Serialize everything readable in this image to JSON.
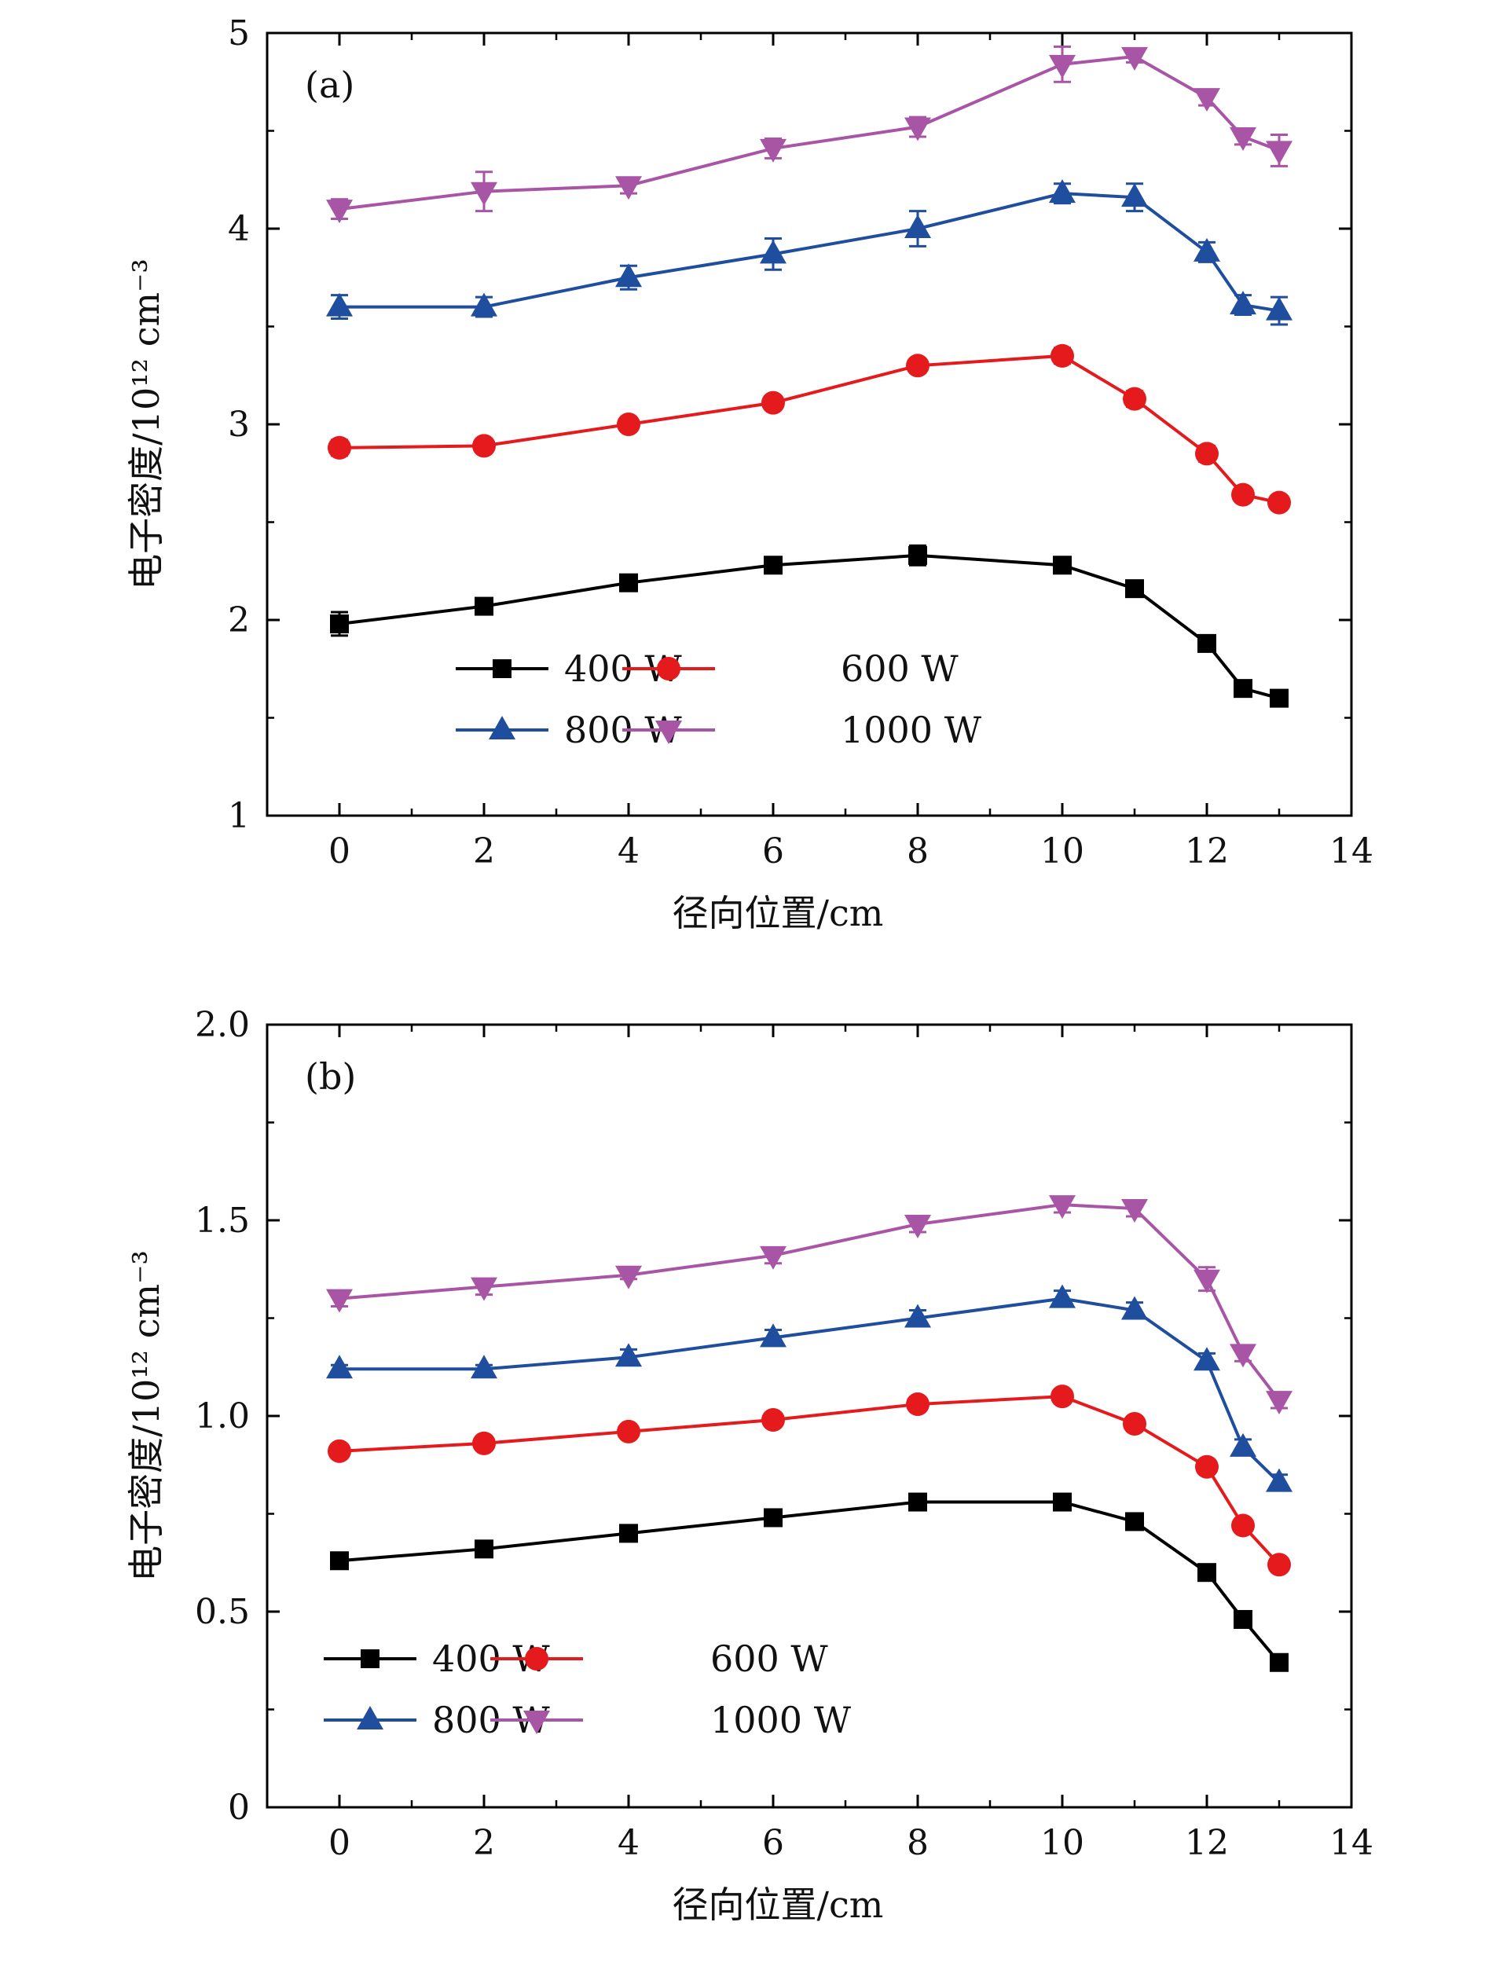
{
  "chart_data": [
    {
      "type": "line",
      "panel_label": "(a)",
      "xlabel": "径向位置/cm",
      "ylabel": "电子密度/10¹² cm⁻³",
      "xlim": [
        -1,
        14
      ],
      "ylim": [
        1,
        5
      ],
      "xticks": [
        0,
        2,
        4,
        6,
        8,
        10,
        12,
        14
      ],
      "yticks": [
        1,
        2,
        3,
        4,
        5
      ],
      "x": [
        0,
        2,
        4,
        6,
        8,
        10,
        11,
        12,
        12.5,
        13
      ],
      "legend_position": "lower-left",
      "series": [
        {
          "name": "400 W",
          "color": "#000000",
          "marker": "square",
          "values": [
            1.98,
            2.07,
            2.19,
            2.28,
            2.33,
            2.28,
            2.16,
            1.88,
            1.65,
            1.6
          ],
          "errors": [
            0.06,
            0.03,
            0.03,
            0.03,
            0.05,
            0.03,
            0.03,
            0.03,
            0.03,
            0.04
          ]
        },
        {
          "name": "600 W",
          "color": "#e41a1c",
          "marker": "circle",
          "values": [
            2.88,
            2.89,
            3.0,
            3.11,
            3.3,
            3.35,
            3.13,
            2.85,
            2.64,
            2.6
          ],
          "errors": [
            0.04,
            0.03,
            0.03,
            0.03,
            0.03,
            0.04,
            0.04,
            0.04,
            0.03,
            0.03
          ]
        },
        {
          "name": "800 W",
          "color": "#1f4e9e",
          "marker": "triangle-up",
          "values": [
            3.6,
            3.6,
            3.75,
            3.87,
            4.0,
            4.18,
            4.16,
            3.88,
            3.61,
            3.58
          ],
          "errors": [
            0.06,
            0.05,
            0.06,
            0.08,
            0.09,
            0.05,
            0.07,
            0.05,
            0.05,
            0.07
          ]
        },
        {
          "name": "1000 W",
          "color": "#a955a6",
          "marker": "triangle-down",
          "values": [
            4.1,
            4.19,
            4.22,
            4.41,
            4.52,
            4.84,
            4.88,
            4.67,
            4.47,
            4.4
          ],
          "errors": [
            0.05,
            0.1,
            0.04,
            0.05,
            0.05,
            0.09,
            0.03,
            0.04,
            0.04,
            0.08
          ]
        }
      ]
    },
    {
      "type": "line",
      "panel_label": "(b)",
      "xlabel": "径向位置/cm",
      "ylabel": "电子密度/10¹² cm⁻³",
      "xlim": [
        -1,
        14
      ],
      "ylim": [
        0,
        2.0
      ],
      "xticks": [
        0,
        2,
        4,
        6,
        8,
        10,
        12,
        14
      ],
      "yticks": [
        0,
        0.5,
        1.0,
        1.5,
        2.0
      ],
      "ytick_labels": [
        "0",
        "0.5",
        "1.0",
        "1.5",
        "2.0"
      ],
      "x": [
        0,
        2,
        4,
        6,
        8,
        10,
        11,
        12,
        12.5,
        13
      ],
      "legend_position": "lower-left",
      "series": [
        {
          "name": "400 W",
          "color": "#000000",
          "marker": "square",
          "values": [
            0.63,
            0.66,
            0.7,
            0.74,
            0.78,
            0.78,
            0.73,
            0.6,
            0.48,
            0.37
          ],
          "errors": [
            0.01,
            0.01,
            0.01,
            0.01,
            0.01,
            0.01,
            0.01,
            0.01,
            0.01,
            0.02
          ]
        },
        {
          "name": "600 W",
          "color": "#e41a1c",
          "marker": "circle",
          "values": [
            0.91,
            0.93,
            0.96,
            0.99,
            1.03,
            1.05,
            0.98,
            0.87,
            0.72,
            0.62
          ],
          "errors": [
            0.01,
            0.01,
            0.01,
            0.01,
            0.01,
            0.01,
            0.01,
            0.01,
            0.01,
            0.01
          ]
        },
        {
          "name": "800 W",
          "color": "#1f4e9e",
          "marker": "triangle-up",
          "values": [
            1.12,
            1.12,
            1.15,
            1.2,
            1.25,
            1.3,
            1.27,
            1.14,
            0.92,
            0.83
          ],
          "errors": [
            0.01,
            0.01,
            0.02,
            0.02,
            0.02,
            0.02,
            0.02,
            0.02,
            0.02,
            0.02
          ]
        },
        {
          "name": "1000 W",
          "color": "#a955a6",
          "marker": "triangle-down",
          "values": [
            1.3,
            1.33,
            1.36,
            1.41,
            1.49,
            1.54,
            1.53,
            1.35,
            1.16,
            1.04
          ],
          "errors": [
            0.02,
            0.02,
            0.01,
            0.02,
            0.02,
            0.02,
            0.02,
            0.03,
            0.02,
            0.02
          ]
        }
      ]
    }
  ]
}
